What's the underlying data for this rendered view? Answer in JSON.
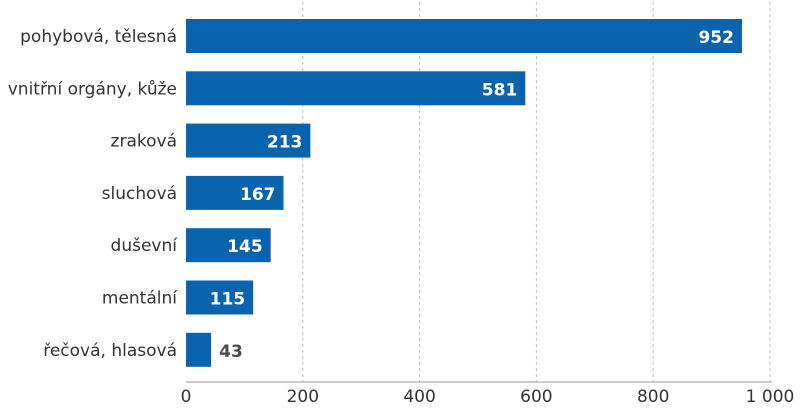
{
  "chart_data": {
    "type": "bar",
    "orientation": "horizontal",
    "categories": [
      "pohybová, tělesná",
      "vnitřní orgány, kůže",
      "zraková",
      "sluchová",
      "duševní",
      "mentální",
      "řečová, hlasová"
    ],
    "values": [
      952,
      581,
      213,
      167,
      145,
      115,
      43
    ],
    "value_labels": [
      "952",
      "581",
      "213",
      "167",
      "145",
      "115",
      "43"
    ],
    "xlim": [
      0,
      1000
    ],
    "x_ticks": [
      0,
      200,
      400,
      600,
      800,
      1000
    ],
    "x_tick_labels": [
      "0",
      "200",
      "400",
      "600",
      "800",
      "1 000"
    ],
    "grid": true,
    "title": "",
    "xlabel": "",
    "ylabel": "",
    "colors": {
      "bar": "#0a63ad",
      "label_inside": "#ffffff",
      "label_outside": "#4d4d4d",
      "grid": "#bdbdbd"
    }
  }
}
